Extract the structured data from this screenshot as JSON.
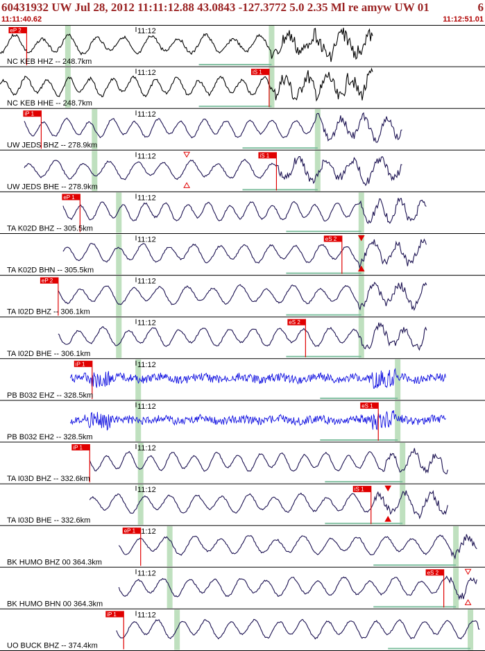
{
  "header": {
    "title": "60431932 UW Jul 28, 2012 11:11:12.88   43.0843 -127.3772  5.0 2.35 Ml re amyw UW 01",
    "title_extra": "6",
    "time_start": "11:11:40.62",
    "time_end": "11:12:51.01"
  },
  "colors": {
    "trace_default": "#1a1050",
    "trace_black": "#000000",
    "trace_blue": "#1010e0",
    "pick_red": "#e00000",
    "window_green": "#bfe0bf",
    "baseline_green": "#7fbf9f",
    "header_text": "#9a2222"
  },
  "chart_data": {
    "type": "line",
    "title": "60431932 UW Jul 28, 2012 11:11:12.88   43.0843 -127.3772  5.0 2.35 Ml re amyw UW 01",
    "x_range": [
      "11:11:40.62",
      "11:12:51.01"
    ],
    "minute_mark_label": "11:12",
    "series": [
      {
        "name": "NC KEB HHZ -- 248.7km",
        "color": "black",
        "seed": 3,
        "start": 0.0,
        "end": 0.77,
        "onset": 0.56,
        "pick": {
          "label": "eP 2",
          "pos": 0.055
        },
        "windows": [
          0.14,
          0.56
        ],
        "baseline": [
          0.41,
          0.56
        ]
      },
      {
        "name": "NC KEB HHE -- 248.7km",
        "color": "black",
        "seed": 7,
        "start": 0.0,
        "end": 0.77,
        "onset": 0.56,
        "pick": {
          "label": "iS 1",
          "pos": 0.555
        },
        "windows": [
          0.14,
          0.56
        ],
        "baseline": [
          0.41,
          0.56
        ]
      },
      {
        "name": "UW JEDS BHZ -- 278.9km",
        "color": "default",
        "seed": 11,
        "start": 0.05,
        "end": 0.83,
        "onset": 0.65,
        "pick": {
          "label": "iP 1",
          "pos": 0.085
        },
        "windows": [
          0.195,
          0.655
        ],
        "baseline": [
          0.5,
          0.655
        ]
      },
      {
        "name": "UW JEDS BHE -- 278.9km",
        "color": "default",
        "seed": 13,
        "start": 0.05,
        "end": 0.83,
        "onset": 0.57,
        "pick": {
          "label": "iS 1",
          "pos": 0.57
        },
        "windows": [
          0.195,
          0.655
        ],
        "baseline": [
          0.5,
          0.655
        ],
        "triangle": {
          "pos": 0.385,
          "fill": false
        }
      },
      {
        "name": "TA K02D BHZ -- 305.5km",
        "color": "default",
        "seed": 17,
        "start": 0.13,
        "end": 0.88,
        "onset": 0.74,
        "pick": {
          "label": "eP 1",
          "pos": 0.165
        },
        "windows": [
          0.245,
          0.745
        ],
        "baseline": [
          0.59,
          0.745
        ]
      },
      {
        "name": "TA K02D BHN -- 305.5km",
        "color": "default",
        "seed": 19,
        "start": 0.13,
        "end": 0.88,
        "onset": 0.74,
        "pick": {
          "label": "eS 2",
          "pos": 0.705
        },
        "windows": [
          0.245,
          0.745
        ],
        "baseline": [
          0.59,
          0.745
        ],
        "triangle": {
          "pos": 0.745,
          "fill": true
        }
      },
      {
        "name": "TA I02D BHZ -- 306.1km",
        "color": "default",
        "seed": 23,
        "start": 0.12,
        "end": 0.88,
        "onset": 0.74,
        "pick": {
          "label": "eP 2",
          "pos": 0.12
        },
        "windows": [
          0.245,
          0.745
        ],
        "baseline": [
          0.59,
          0.745
        ]
      },
      {
        "name": "TA I02D BHE -- 306.1km",
        "color": "default",
        "seed": 29,
        "start": 0.12,
        "end": 0.88,
        "onset": 0.74,
        "pick": {
          "label": "eS 2",
          "pos": 0.63
        },
        "windows": [
          0.245,
          0.745
        ],
        "baseline": [
          0.59,
          0.745
        ]
      },
      {
        "name": "PB B032 EHZ -- 328.5km",
        "color": "blue",
        "seed": 31,
        "start": 0.145,
        "end": 0.92,
        "onset": 0.78,
        "pick": {
          "label": "iP 1",
          "pos": 0.19
        },
        "windows": [
          0.285,
          0.82
        ],
        "baseline": [
          0.66,
          0.82
        ],
        "noise": true
      },
      {
        "name": "PB B032 EH2 -- 328.5km",
        "color": "blue",
        "seed": 37,
        "start": 0.145,
        "end": 0.92,
        "onset": 0.78,
        "pick": {
          "label": "eS 1",
          "pos": 0.78
        },
        "windows": [
          0.285,
          0.82
        ],
        "baseline": [
          0.66,
          0.82
        ],
        "noise": true
      },
      {
        "name": "TA I03D BHZ -- 332.6km",
        "color": "default",
        "seed": 41,
        "start": 0.185,
        "end": 0.925,
        "onset": 0.79,
        "pick": {
          "label": "iP 1",
          "pos": 0.185
        },
        "windows": [
          0.29,
          0.83
        ],
        "baseline": [
          0.67,
          0.83
        ]
      },
      {
        "name": "TA I03D BHE -- 332.6km",
        "color": "default",
        "seed": 43,
        "start": 0.185,
        "end": 0.925,
        "onset": 0.77,
        "pick": {
          "label": "iS 1",
          "pos": 0.765
        },
        "windows": [
          0.29,
          0.83
        ],
        "baseline": [
          0.67,
          0.83
        ],
        "triangle": {
          "pos": 0.8,
          "fill": true
        }
      },
      {
        "name": "BK HUMO BHZ 00 364.3km",
        "color": "default",
        "seed": 47,
        "start": 0.245,
        "end": 0.985,
        "onset": 0.93,
        "pick": {
          "label": "eP 1",
          "pos": 0.29
        },
        "windows": [
          0.35,
          0.94
        ],
        "baseline": [
          0.77,
          0.94
        ]
      },
      {
        "name": "BK HUMO BHN 00 364.3km",
        "color": "default",
        "seed": 53,
        "start": 0.245,
        "end": 0.985,
        "onset": 0.92,
        "pick": {
          "label": "eS 2",
          "pos": 0.915
        },
        "windows": [
          0.35,
          0.94
        ],
        "baseline": [
          0.77,
          0.94
        ],
        "triangle": {
          "pos": 0.965,
          "fill": false
        }
      },
      {
        "name": "UO BUCK BHZ -- 374.4km",
        "color": "default",
        "seed": 59,
        "start": 0.24,
        "end": 0.99,
        "onset": 0.98,
        "pick": {
          "label": "iP 1",
          "pos": 0.255
        },
        "windows": [
          0.365,
          0.97
        ],
        "baseline": [
          0.8,
          0.97
        ]
      }
    ]
  }
}
